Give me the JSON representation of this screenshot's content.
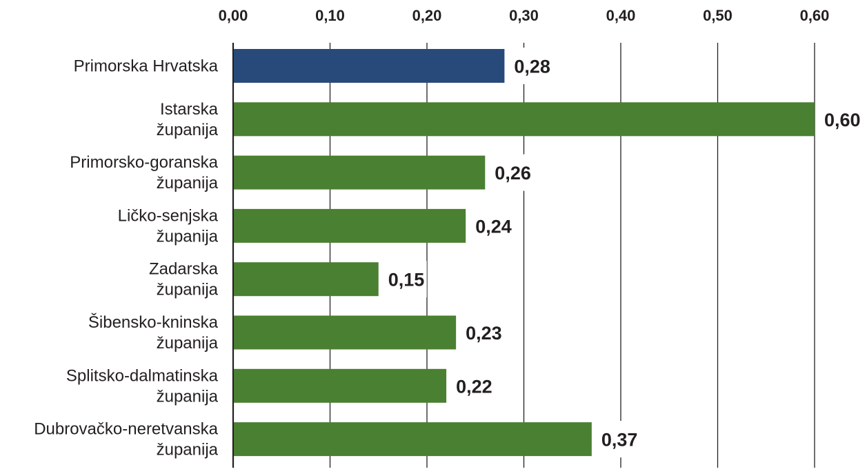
{
  "chart_data": {
    "type": "bar",
    "orientation": "horizontal",
    "title": "",
    "xlabel": "",
    "ylabel": "",
    "xlim": [
      0,
      0.6
    ],
    "ticks": [
      "0,00",
      "0,10",
      "0,20",
      "0,30",
      "0,40",
      "0,50",
      "0,60"
    ],
    "tick_values": [
      0,
      0.1,
      0.2,
      0.3,
      0.4,
      0.5,
      0.6
    ],
    "grid": true,
    "axis_position": "top",
    "categories": [
      {
        "lines": [
          "Primorska Hrvatska"
        ]
      },
      {
        "lines": [
          "Istarska",
          "županija"
        ]
      },
      {
        "lines": [
          "Primorsko-goranska",
          "županija"
        ]
      },
      {
        "lines": [
          "Ličko-senjska",
          "županija"
        ]
      },
      {
        "lines": [
          "Zadarska",
          "županija"
        ]
      },
      {
        "lines": [
          "Šibensko-kninska",
          "županija"
        ]
      },
      {
        "lines": [
          "Splitsko-dalmatinska",
          "županija"
        ]
      },
      {
        "lines": [
          "Dubrovačko-neretvanska",
          "županija"
        ]
      }
    ],
    "values": [
      0.28,
      0.6,
      0.26,
      0.24,
      0.15,
      0.23,
      0.22,
      0.37
    ],
    "value_labels": [
      "0,28",
      "0,60",
      "0,26",
      "0,24",
      "0,15",
      "0,23",
      "0,22",
      "0,37"
    ],
    "colors": {
      "highlight": "#274a7a",
      "bar": "#4a8031",
      "grid": "#231f20",
      "text": "#231f20"
    },
    "highlight_index": 0
  }
}
